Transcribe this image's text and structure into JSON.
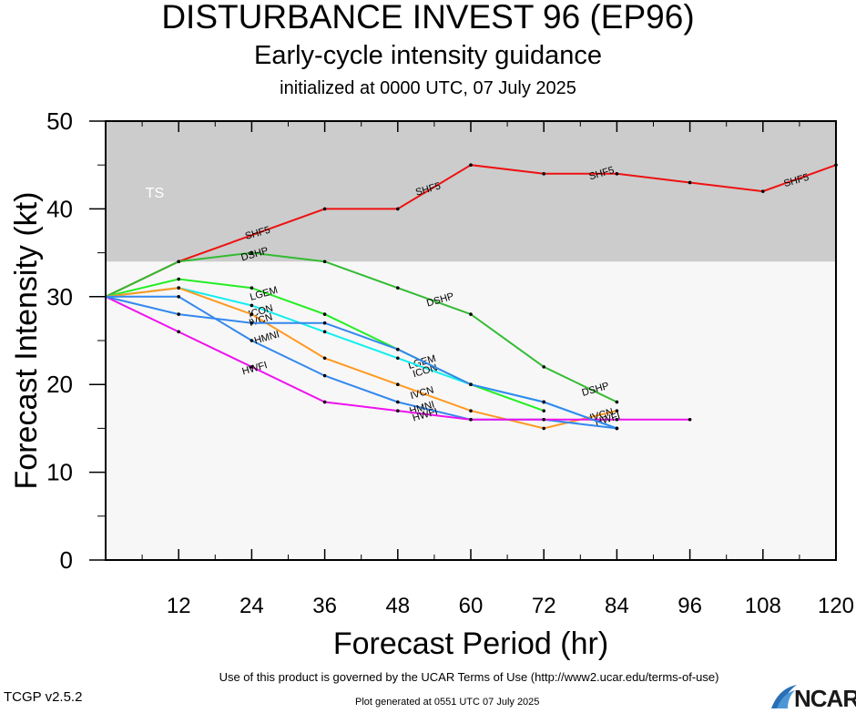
{
  "chart_data": {
    "type": "line",
    "title": "DISTURBANCE INVEST 96 (EP96)",
    "subtitle": "Early-cycle intensity guidance",
    "subtitle2": "initialized at 0000 UTC, 07 July 2025",
    "xlabel": "Forecast Period (hr)",
    "ylabel": "Forecast Intensity (kt)",
    "xlim": [
      0,
      120
    ],
    "ylim": [
      0,
      50
    ],
    "xticks": [
      12,
      24,
      36,
      48,
      60,
      72,
      84,
      96,
      108,
      120
    ],
    "yticks": [
      0,
      10,
      20,
      30,
      40,
      50
    ],
    "band": {
      "label": "TS",
      "from": 34,
      "to": 50,
      "color": "#cccccc"
    },
    "series": [
      {
        "name": "SHF5",
        "color": "#ee1111",
        "x": [
          0,
          12,
          36,
          48,
          60,
          72,
          84,
          96,
          108,
          120
        ],
        "y": [
          30,
          34,
          40,
          40,
          45,
          44,
          44,
          43,
          42,
          45
        ],
        "labels": [
          {
            "x": 25,
            "y": 37.2
          },
          {
            "x": 53,
            "y": 42.2
          },
          {
            "x": 81.5,
            "y": 44
          },
          {
            "x": 113.5,
            "y": 43.2
          }
        ]
      },
      {
        "name": "DSHP",
        "color": "#33bb33",
        "x": [
          0,
          12,
          24,
          36,
          48,
          60,
          72,
          84
        ],
        "y": [
          30,
          34,
          35,
          34,
          31,
          28,
          22,
          18
        ],
        "labels": [
          {
            "x": 24.5,
            "y": 34.8
          },
          {
            "x": 55,
            "y": 29.6
          },
          {
            "x": 80.5,
            "y": 19.4
          }
        ]
      },
      {
        "name": "LGEM",
        "color": "#22ee22",
        "x": [
          0,
          12,
          24,
          36,
          48,
          60,
          72
        ],
        "y": [
          30,
          32,
          31,
          28,
          24,
          20,
          17
        ],
        "labels": [
          {
            "x": 26,
            "y": 30.3
          },
          {
            "x": 52,
            "y": 22.5
          }
        ]
      },
      {
        "name": "ICON",
        "color": "#11eeee",
        "x": [
          0,
          12,
          24,
          36,
          48,
          60,
          72,
          84
        ],
        "y": [
          30,
          31,
          29,
          26,
          23,
          20,
          18,
          15
        ],
        "labels": [
          {
            "x": 25.5,
            "y": 28.3
          },
          {
            "x": 52.5,
            "y": 21.5
          }
        ]
      },
      {
        "name": "IVCN",
        "color": "#ff9922",
        "x": [
          0,
          12,
          24,
          36,
          48,
          60,
          72,
          84
        ],
        "y": [
          30,
          31,
          28,
          23,
          20,
          17,
          15,
          17
        ],
        "labels": [
          {
            "x": 25.5,
            "y": 27.3
          },
          {
            "x": 52,
            "y": 19
          },
          {
            "x": 81.5,
            "y": 16.5
          }
        ]
      },
      {
        "name": "HMNI",
        "color": "#3388ee",
        "x": [
          0,
          12,
          24,
          36,
          48,
          60,
          72,
          84
        ],
        "y": [
          30,
          30,
          25,
          21,
          18,
          16,
          16,
          15
        ],
        "labels": [
          {
            "x": 26.5,
            "y": 25.3
          },
          {
            "x": 52,
            "y": 17.3
          }
        ]
      },
      {
        "name": "HWFI",
        "color": "#ee11ee",
        "x": [
          0,
          12,
          24,
          36,
          48,
          60,
          72,
          84,
          96
        ],
        "y": [
          30,
          26,
          22,
          18,
          17,
          16,
          16,
          16,
          16
        ],
        "labels": [
          {
            "x": 24.5,
            "y": 21.8
          },
          {
            "x": 52.5,
            "y": 16.5
          },
          {
            "x": 82.5,
            "y": 16
          }
        ]
      },
      {
        "name": "",
        "color": "#3388ee",
        "x": [
          0,
          12,
          24,
          36,
          48,
          60,
          72,
          84
        ],
        "y": [
          30,
          28,
          27,
          27,
          24,
          20,
          18,
          15
        ],
        "labels": []
      }
    ]
  },
  "band_label": "TS",
  "footer": {
    "terms": "Use of this product is governed by the UCAR Terms of Use (http://www2.ucar.edu/terms-of-use)",
    "version": "TCGP v2.5.2",
    "generated": "Plot generated at 0551 UTC   07 July 2025",
    "logo": "NCAR"
  }
}
